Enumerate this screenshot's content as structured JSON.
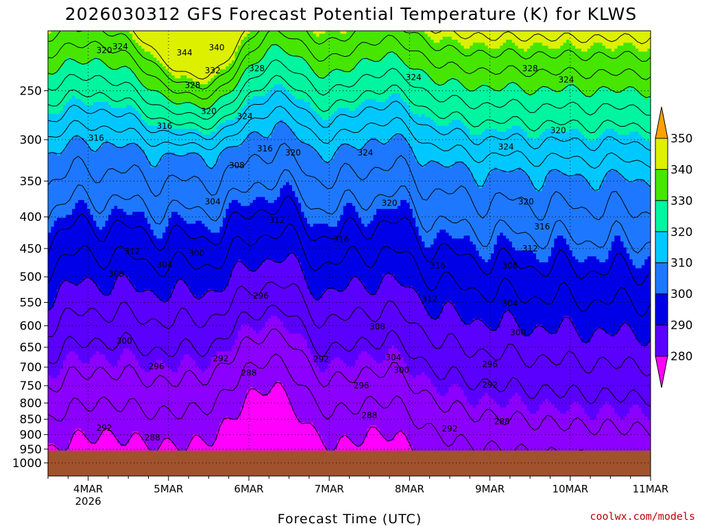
{
  "title": "2026030312 GFS Forecast Potential Temperature (K) for KLWS",
  "xlabel": "Forecast Time (UTC)",
  "credit": "coolwx.com/models",
  "chart_data": {
    "type": "heatmap",
    "title": "2026030312 GFS Forecast Potential Temperature (K) for KLWS",
    "xlabel": "Forecast Time (UTC)",
    "ylabel": "",
    "x_start": "2026-03-03 12 UTC",
    "x_end": "2026-03-11 00 UTC",
    "x_tick_labels": [
      {
        "label": "4MAR",
        "sub": "2026",
        "value": "2026-03-04"
      },
      {
        "label": "5MAR",
        "sub": "",
        "value": "2026-03-05"
      },
      {
        "label": "6MAR",
        "sub": "",
        "value": "2026-03-06"
      },
      {
        "label": "7MAR",
        "sub": "",
        "value": "2026-03-07"
      },
      {
        "label": "8MAR",
        "sub": "",
        "value": "2026-03-08"
      },
      {
        "label": "9MAR",
        "sub": "",
        "value": "2026-03-09"
      },
      {
        "label": "10MAR",
        "sub": "",
        "value": "2026-03-10"
      },
      {
        "label": "11MAR",
        "sub": "",
        "value": "2026-03-11"
      }
    ],
    "y_tick_labels": [
      "250",
      "300",
      "350",
      "400",
      "450",
      "500",
      "550",
      "600",
      "650",
      "700",
      "750",
      "800",
      "850",
      "900",
      "950",
      "1000"
    ],
    "ylim": [
      200,
      1050
    ],
    "y_scale": "log",
    "y_inverted": true,
    "colorbar": {
      "levels": [
        280,
        290,
        300,
        310,
        320,
        330,
        340,
        350
      ],
      "colors": [
        "#ff00ff",
        "#8c00ff",
        "#5a00ff",
        "#0000e6",
        "#1e78ff",
        "#00c8ff",
        "#00f5a0",
        "#46e600",
        "#dcf000",
        "#ffa000"
      ]
    },
    "contour_interval": 4,
    "ground_color": "#a0522d",
    "surface_pressure": 955,
    "contour_labels": [
      {
        "text": "320",
        "t": 0.2,
        "p": 215
      },
      {
        "text": "324",
        "t": 0.4,
        "p": 212
      },
      {
        "text": "344",
        "t": 1.2,
        "p": 217
      },
      {
        "text": "340",
        "t": 1.6,
        "p": 213
      },
      {
        "text": "332",
        "t": 1.55,
        "p": 232
      },
      {
        "text": "328",
        "t": 1.3,
        "p": 245
      },
      {
        "text": "328",
        "t": 2.1,
        "p": 230
      },
      {
        "text": "320",
        "t": 1.5,
        "p": 270
      },
      {
        "text": "324",
        "t": 1.95,
        "p": 275
      },
      {
        "text": "316",
        "t": 0.1,
        "p": 298
      },
      {
        "text": "316",
        "t": 0.95,
        "p": 285
      },
      {
        "text": "316",
        "t": 2.2,
        "p": 310
      },
      {
        "text": "320",
        "t": 2.55,
        "p": 315
      },
      {
        "text": "324",
        "t": 3.45,
        "p": 315
      },
      {
        "text": "324",
        "t": 4.05,
        "p": 238
      },
      {
        "text": "328",
        "t": 5.5,
        "p": 230
      },
      {
        "text": "324",
        "t": 5.95,
        "p": 240
      },
      {
        "text": "320",
        "t": 5.85,
        "p": 290
      },
      {
        "text": "324",
        "t": 5.2,
        "p": 308
      },
      {
        "text": "320",
        "t": 3.75,
        "p": 380
      },
      {
        "text": "320",
        "t": 5.45,
        "p": 378
      },
      {
        "text": "316",
        "t": 5.65,
        "p": 415
      },
      {
        "text": "308",
        "t": 1.85,
        "p": 330
      },
      {
        "text": "304",
        "t": 1.55,
        "p": 378
      },
      {
        "text": "312",
        "t": 2.35,
        "p": 405
      },
      {
        "text": "316",
        "t": 3.15,
        "p": 435
      },
      {
        "text": "312",
        "t": 0.55,
        "p": 455
      },
      {
        "text": "312",
        "t": 5.5,
        "p": 450
      },
      {
        "text": "304",
        "t": 0.95,
        "p": 478
      },
      {
        "text": "300",
        "t": 1.35,
        "p": 458
      },
      {
        "text": "316",
        "t": 4.35,
        "p": 480
      },
      {
        "text": "308",
        "t": 0.35,
        "p": 495
      },
      {
        "text": "308",
        "t": 5.25,
        "p": 480
      },
      {
        "text": "296",
        "t": 2.15,
        "p": 537
      },
      {
        "text": "312",
        "t": 4.25,
        "p": 543
      },
      {
        "text": "304",
        "t": 5.25,
        "p": 552
      },
      {
        "text": "308",
        "t": 3.6,
        "p": 602
      },
      {
        "text": "300",
        "t": 5.35,
        "p": 615
      },
      {
        "text": "300",
        "t": 0.45,
        "p": 635
      },
      {
        "text": "304",
        "t": 3.8,
        "p": 675
      },
      {
        "text": "292",
        "t": 1.65,
        "p": 678
      },
      {
        "text": "292",
        "t": 2.9,
        "p": 680
      },
      {
        "text": "296",
        "t": 0.85,
        "p": 698
      },
      {
        "text": "300",
        "t": 3.9,
        "p": 708
      },
      {
        "text": "296",
        "t": 5.0,
        "p": 693
      },
      {
        "text": "288",
        "t": 2.0,
        "p": 715
      },
      {
        "text": "296",
        "t": 3.4,
        "p": 750
      },
      {
        "text": "292",
        "t": 5.0,
        "p": 748
      },
      {
        "text": "288",
        "t": 3.5,
        "p": 838
      },
      {
        "text": "288",
        "t": 5.15,
        "p": 857
      },
      {
        "text": "292",
        "t": 0.2,
        "p": 878
      },
      {
        "text": "292",
        "t": 4.5,
        "p": 880
      },
      {
        "text": "288",
        "t": 0.8,
        "p": 910
      }
    ]
  }
}
